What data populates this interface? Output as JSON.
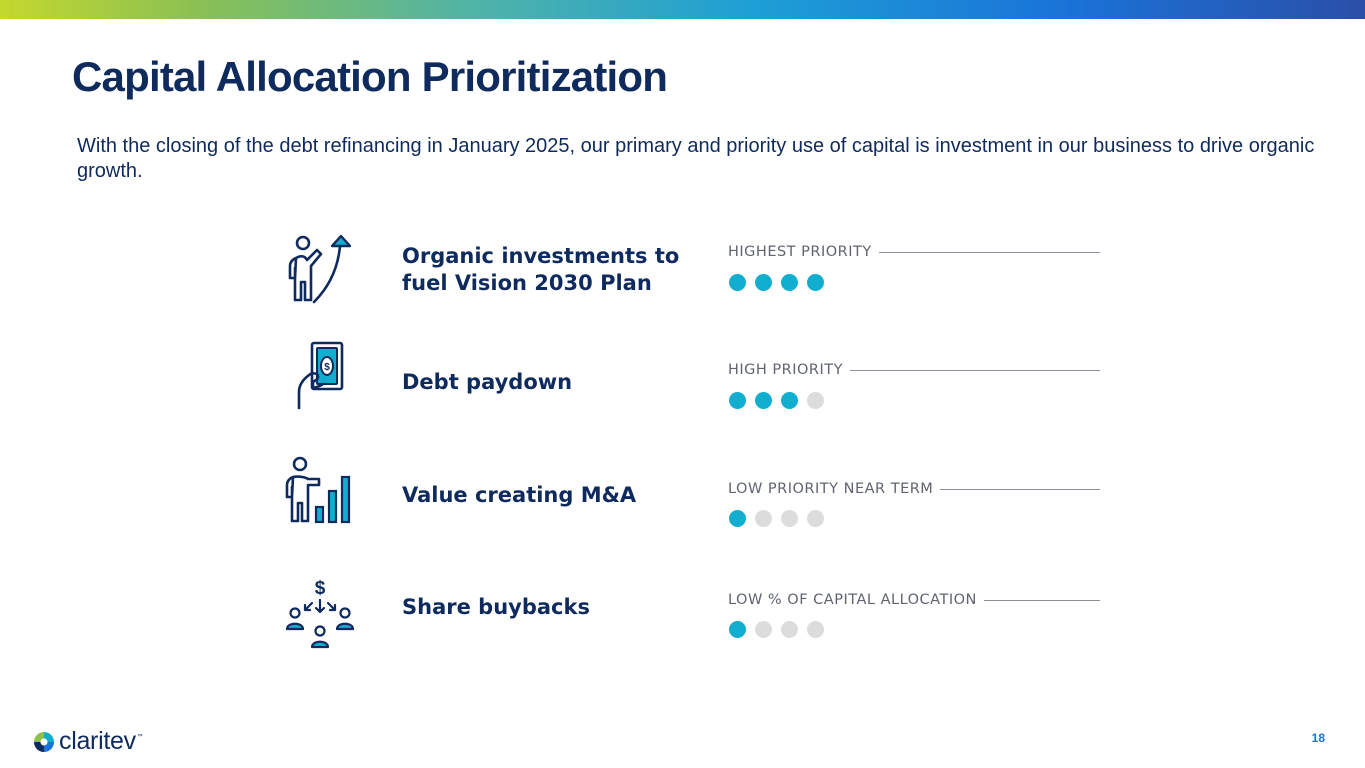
{
  "header": {
    "title": "Capital Allocation Prioritization",
    "subtitle": "With the closing of the debt refinancing in January 2025, our primary and priority use of capital is investment in our business to drive organic growth."
  },
  "colors": {
    "navy": "#0f2a5c",
    "accent_teal": "#12aed0",
    "inactive_dot": "#dcdcdc",
    "gray_text": "#5f6470",
    "page_number_blue": "#1a73d8"
  },
  "items": [
    {
      "icon": "person-growth-arrow-icon",
      "label_line1": "Organic investments to",
      "label_line2": "fuel Vision 2030 Plan",
      "priority": "HIGHEST PRIORITY",
      "level": 4,
      "max_level": 4
    },
    {
      "icon": "hand-holding-money-icon",
      "label_line1": "Debt paydown",
      "label_line2": "",
      "priority": "HIGH PRIORITY",
      "level": 3,
      "max_level": 4
    },
    {
      "icon": "person-bar-chart-icon",
      "label_line1": "Value creating M&A",
      "label_line2": "",
      "priority": "LOW PRIORITY NEAR TERM",
      "level": 1,
      "max_level": 4
    },
    {
      "icon": "dollar-shareholders-icon",
      "label_line1": "Share buybacks",
      "label_line2": "",
      "priority": "LOW % OF CAPITAL ALLOCATION",
      "level": 1,
      "max_level": 4
    }
  ],
  "footer": {
    "logo_text": "claritev",
    "logo_tm": "™",
    "page_number": "18"
  }
}
